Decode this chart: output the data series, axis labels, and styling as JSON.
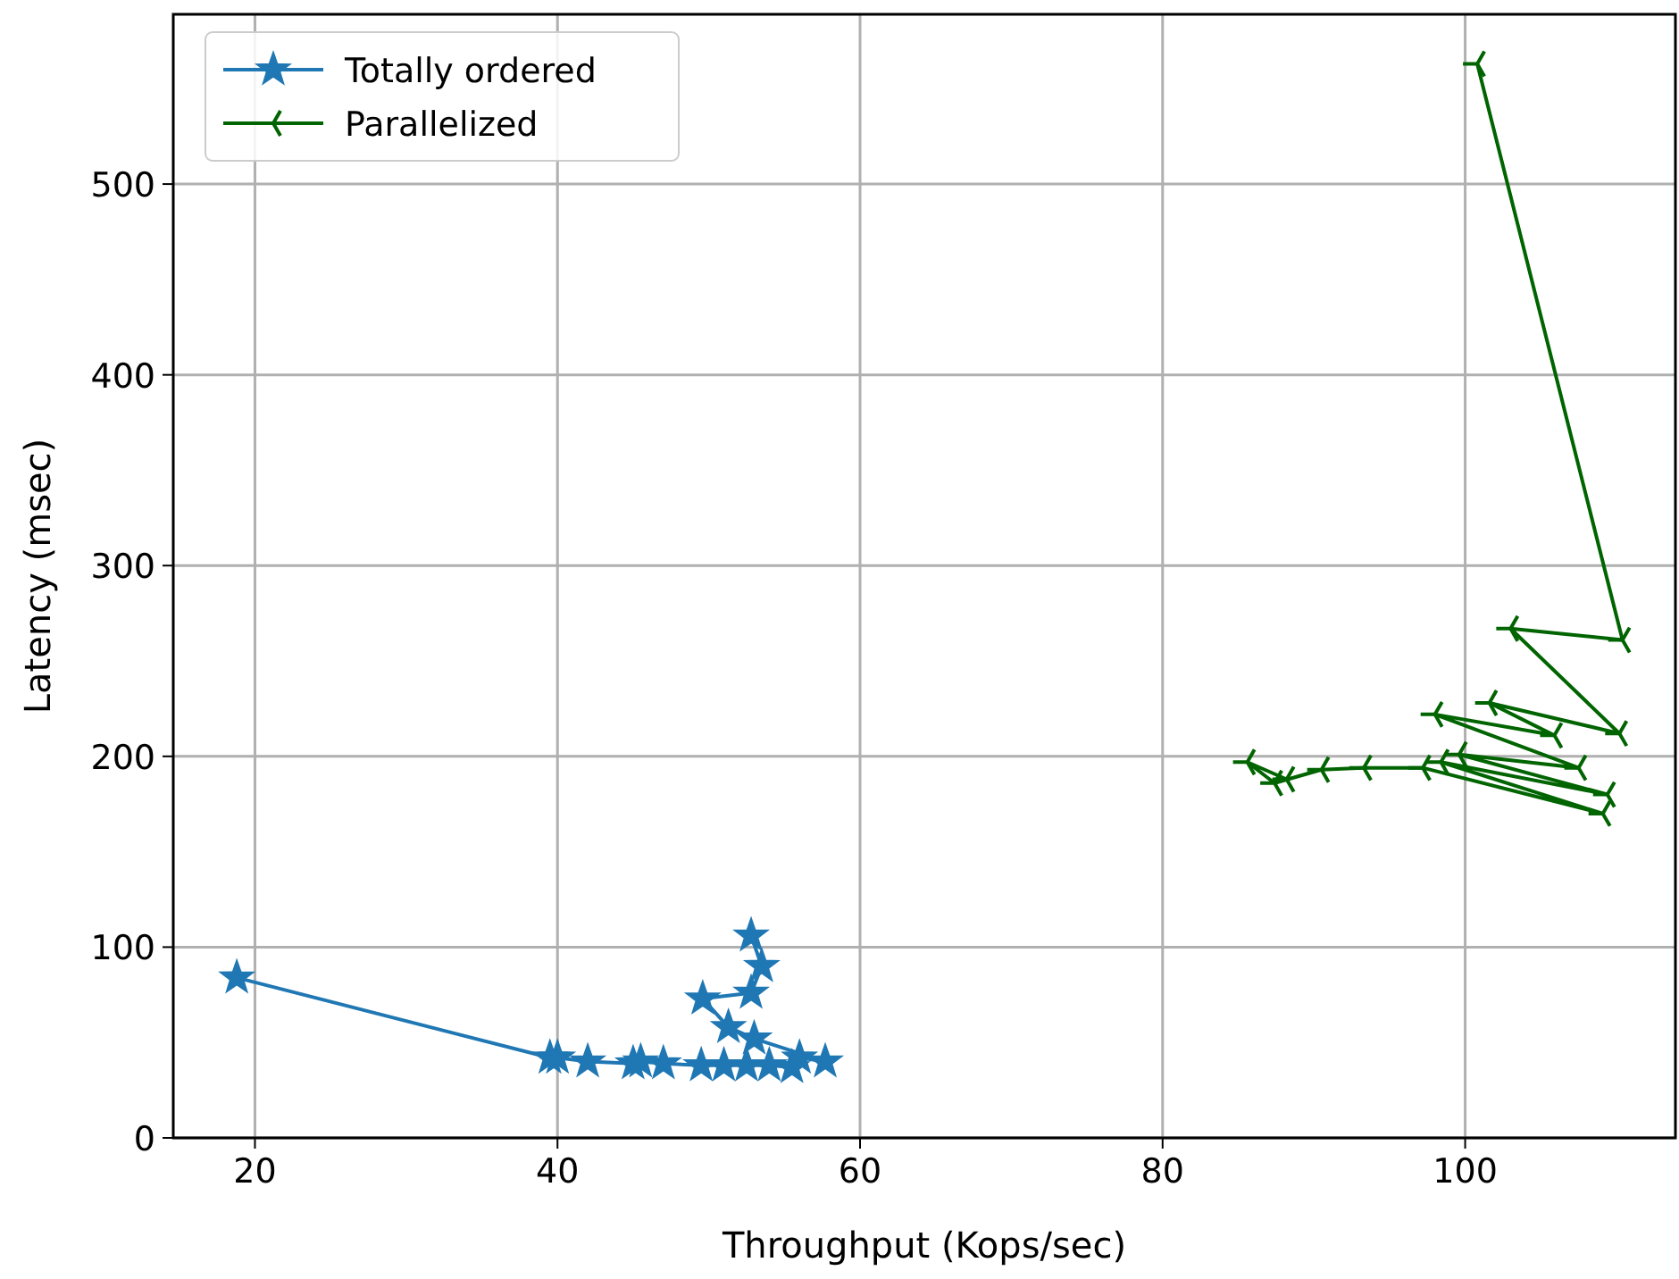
{
  "chart_data": {
    "type": "line",
    "xlabel": "Throughput (Kops/sec)",
    "ylabel": "Latency (msec)",
    "xlim": [
      14.6,
      113.9
    ],
    "ylim": [
      0,
      589
    ],
    "xticks": [
      20,
      40,
      60,
      80,
      100
    ],
    "yticks": [
      0,
      100,
      200,
      300,
      400,
      500
    ],
    "grid": true,
    "legend": "top left",
    "line_style": "solid",
    "series": [
      {
        "name": "Totally ordered",
        "color": "#1f77b4",
        "marker": "star",
        "x": [
          18.8,
          39.5,
          40,
          42,
          45,
          45.5,
          47,
          49.5,
          51,
          52.5,
          54,
          55.5,
          56,
          57.7,
          53,
          51.3,
          49.6,
          52.8,
          53.5,
          52.8
        ],
        "values": [
          84,
          42,
          42,
          40,
          39,
          40,
          39,
          38,
          38,
          38,
          38,
          37,
          42,
          40,
          52,
          58,
          73,
          76,
          90,
          106
        ]
      },
      {
        "name": "Parallelized",
        "color": "#006400",
        "marker": "cross",
        "x": [
          100.8,
          110.4,
          103,
          110.2,
          101.6,
          105.9,
          98,
          107.5,
          99.6,
          109.4,
          98.4,
          109.1,
          97.2,
          93.3,
          90.5,
          87.4,
          85.6,
          88.2
        ],
        "values": [
          563,
          261,
          267,
          212,
          228,
          211,
          222,
          194,
          201,
          180,
          197,
          170,
          194,
          194,
          193,
          186,
          197,
          188
        ]
      }
    ]
  }
}
